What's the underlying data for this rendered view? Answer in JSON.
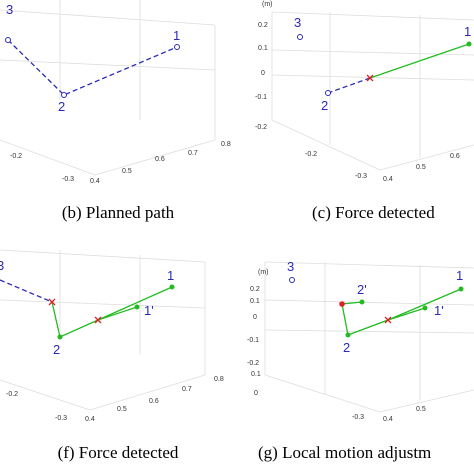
{
  "panels": [
    {
      "caption": "(b) Planned path",
      "point_labels": [
        "3",
        "2",
        "1"
      ],
      "tick_labels": [
        "-0.2",
        "-0.3",
        "0.4",
        "0.5",
        "0.6",
        "0.7",
        "0.8"
      ]
    },
    {
      "caption": "(c) Force detected",
      "unit": "(m)",
      "point_labels": [
        "3",
        "1",
        "2"
      ],
      "tick_labels": [
        "0.2",
        "0.1",
        "0",
        "-0.1",
        "-0.2",
        "-0.2",
        "-0.3",
        "0.4",
        "0.5",
        "0.6"
      ]
    },
    {
      "caption": "(f) Force detected",
      "point_labels": [
        "3",
        "1",
        "1'",
        "2"
      ],
      "tick_labels": [
        "-0.2",
        "-0.3",
        "0.4",
        "0.5",
        "0.6",
        "0.7",
        "0.8"
      ]
    },
    {
      "caption": "(g) Local motion adjustm",
      "unit": "(m)",
      "point_labels": [
        "3",
        "1",
        "2'",
        "1'",
        "2"
      ],
      "tick_labels": [
        "0.2",
        "0.1",
        "0",
        "-0.1",
        "-0.2",
        "0.1",
        "0",
        "-0.3",
        "0.4",
        "0.5"
      ]
    }
  ]
}
